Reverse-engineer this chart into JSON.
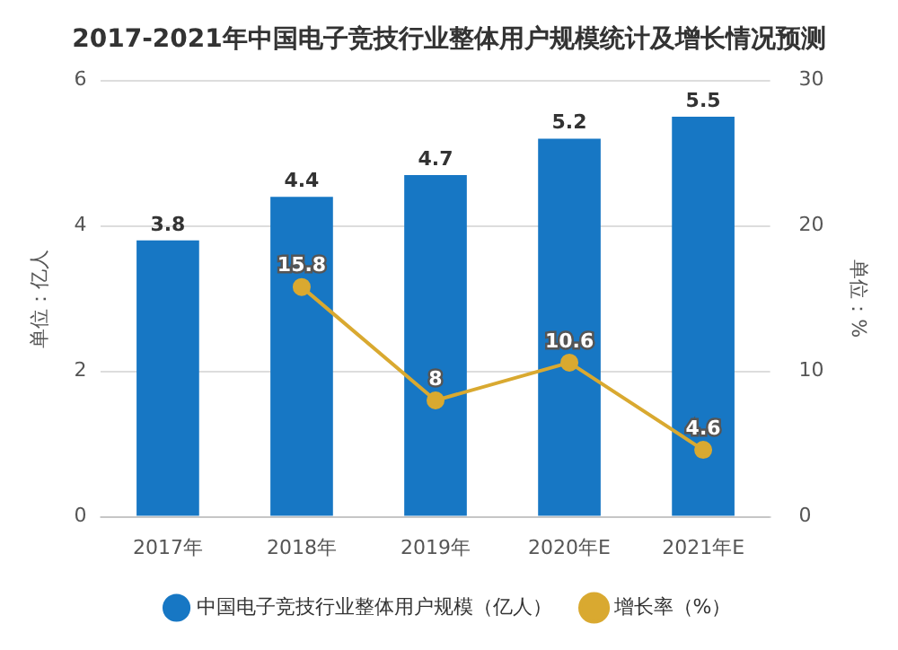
{
  "chart_data": {
    "type": "bar",
    "title": "2017-2021年中国电子竞技行业整体用户规模统计及增长情况预测",
    "categories": [
      "2017年",
      "2018年",
      "2019年",
      "2020年E",
      "2021年E"
    ],
    "series": [
      {
        "name": "中国电子竞技行业整体用户规模（亿人）",
        "color": "#1777c4",
        "values": [
          3.8,
          4.4,
          4.7,
          5.2,
          5.5
        ]
      },
      {
        "name": "增长率（%）",
        "type": "line",
        "axis": "y2",
        "color": "#d9a930",
        "values": [
          null,
          15.8,
          8,
          10.6,
          4.6
        ]
      }
    ],
    "ylabel": "单位：亿人",
    "y2label": "单位：%",
    "ylim": [
      0,
      6
    ],
    "yticks": [
      0,
      2,
      4,
      6
    ],
    "y2lim": [
      0,
      30
    ],
    "y2ticks": [
      0,
      10,
      20,
      30
    ],
    "grid": "y",
    "legend": "bottom",
    "marker": "circle",
    "data_labels": true
  }
}
